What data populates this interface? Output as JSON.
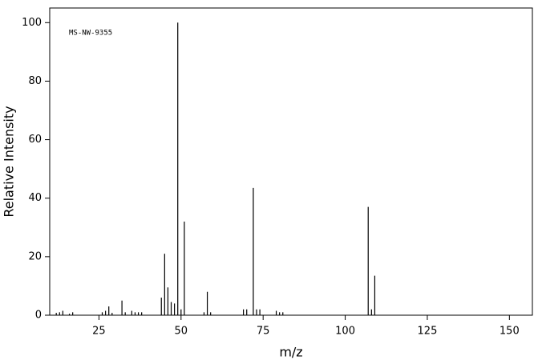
{
  "chart_data": {
    "type": "stem",
    "annotation": "MS-NW-9355",
    "xlabel": "m/z",
    "ylabel": "Relative Intensity",
    "x": [
      12,
      13,
      14,
      16,
      17,
      26,
      27,
      28,
      29,
      32,
      33,
      35,
      36,
      37,
      38,
      44,
      45,
      46,
      47,
      48,
      49,
      50,
      51,
      57,
      58,
      59,
      69,
      70,
      72,
      73,
      74,
      79,
      80,
      81,
      107,
      108,
      109
    ],
    "values": [
      0.8,
      1,
      1.5,
      0.5,
      1,
      1,
      1.5,
      3,
      0.8,
      5,
      1,
      1.5,
      1,
      1,
      1,
      6,
      21,
      9.5,
      4.5,
      4,
      100,
      2,
      32,
      1,
      8,
      1,
      2,
      2,
      43.5,
      2,
      2,
      1.5,
      1,
      1,
      37,
      2,
      13.5
    ],
    "color": "#000000",
    "xlim": [
      10,
      157
    ],
    "xticks": [
      25,
      50,
      75,
      100,
      125,
      150
    ],
    "ylim": [
      0,
      105
    ],
    "yticks": [
      0,
      20,
      40,
      60,
      80,
      100
    ]
  }
}
